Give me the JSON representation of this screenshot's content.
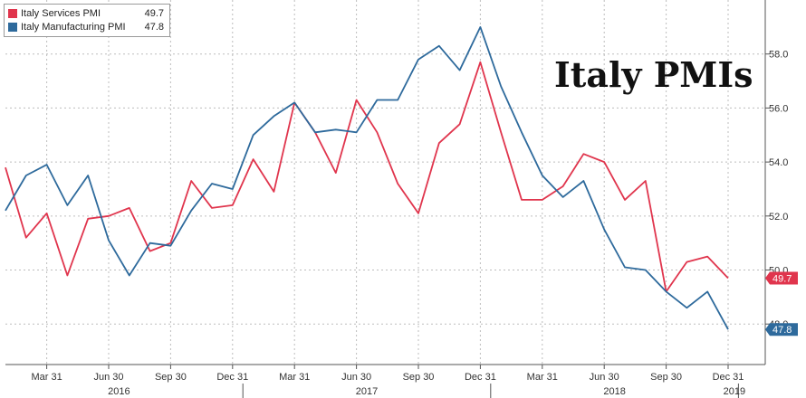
{
  "chart_data": {
    "type": "line",
    "title": "Italy PMIs",
    "legend": [
      {
        "name": "Italy Services PMI",
        "value": "49.7",
        "color": "#e0354d"
      },
      {
        "name": "Italy Manufacturing PMI",
        "value": "47.8",
        "color": "#2e6a9c"
      }
    ],
    "ylim": [
      46.5,
      60.0
    ],
    "yticks": [
      "48.0",
      "50.0",
      "52.0",
      "54.0",
      "56.0",
      "58.0"
    ],
    "x_tick_labels": [
      "Mar 31",
      "Jun 30",
      "Sep 30",
      "Dec 31",
      "Mar 31",
      "Jun 30",
      "Sep 30",
      "Dec 31",
      "Mar 31",
      "Jun 30",
      "Sep 30",
      "Dec 31"
    ],
    "years": [
      "2016",
      "2017",
      "2018",
      "2019"
    ],
    "x_start": "Jan 2016",
    "x_end": "Jan 2019",
    "series": [
      {
        "name": "Italy Services PMI",
        "color": "#e0354d",
        "last_value_label": "49.7",
        "values": [
          53.8,
          51.2,
          52.1,
          49.8,
          51.9,
          52.0,
          52.3,
          50.7,
          51.0,
          53.3,
          52.3,
          52.4,
          54.1,
          52.9,
          56.2,
          55.1,
          53.6,
          56.3,
          55.1,
          53.2,
          52.1,
          54.7,
          55.4,
          57.7,
          55.1,
          52.6,
          52.6,
          53.1,
          54.3,
          54.0,
          52.6,
          53.3,
          49.2,
          50.3,
          50.5,
          49.7
        ]
      },
      {
        "name": "Italy Manufacturing PMI",
        "color": "#2e6a9c",
        "last_value_label": "47.8",
        "values": [
          52.2,
          53.5,
          53.9,
          52.4,
          53.5,
          51.1,
          49.8,
          51.0,
          50.9,
          52.2,
          53.2,
          53.0,
          55.0,
          55.7,
          56.2,
          55.1,
          55.2,
          55.1,
          56.3,
          56.3,
          57.8,
          58.3,
          57.4,
          59.0,
          56.8,
          55.1,
          53.5,
          52.7,
          53.3,
          51.5,
          50.1,
          50.0,
          49.2,
          48.6,
          49.2,
          47.8
        ]
      }
    ],
    "grid": true,
    "y_axis_position": "right",
    "legend_position": "top-left"
  }
}
